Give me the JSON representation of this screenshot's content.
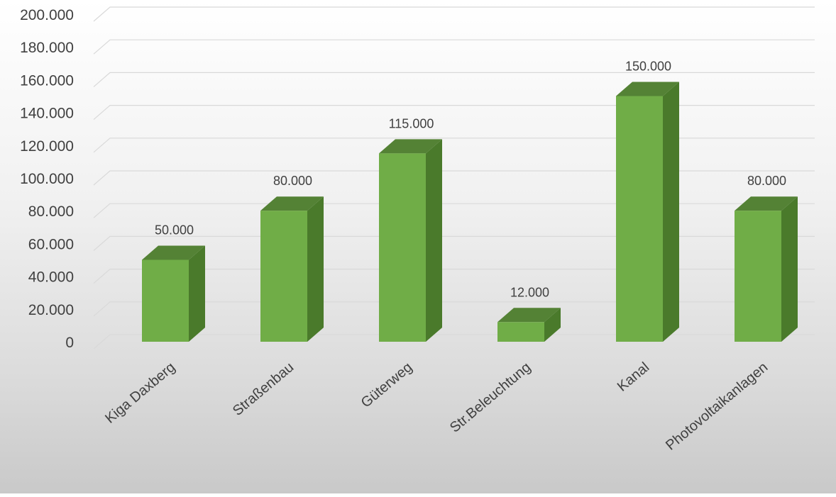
{
  "chart_data": {
    "type": "bar",
    "style": "3d-column",
    "categories": [
      "Kiga Daxberg",
      "Straßenbau",
      "Güterweg",
      "Str.Beleuchtung",
      "Kanal",
      "Photovoltaikanlagen"
    ],
    "values": [
      50000,
      80000,
      115000,
      12000,
      150000,
      80000
    ],
    "data_labels": [
      "50.000",
      "80.000",
      "115.000",
      "12.000",
      "150.000",
      "80.000"
    ],
    "y_ticks": [
      "0",
      "20.000",
      "40.000",
      "60.000",
      "80.000",
      "100.000",
      "120.000",
      "140.000",
      "160.000",
      "180.000",
      "200.000"
    ],
    "ylim": [
      0,
      200000
    ],
    "grid": true,
    "legend": "none",
    "colors": {
      "bar_front": "#70ad47",
      "bar_side": "#4a7a2b",
      "bar_top": "#548235",
      "gridline": "#d9d9d9"
    }
  }
}
